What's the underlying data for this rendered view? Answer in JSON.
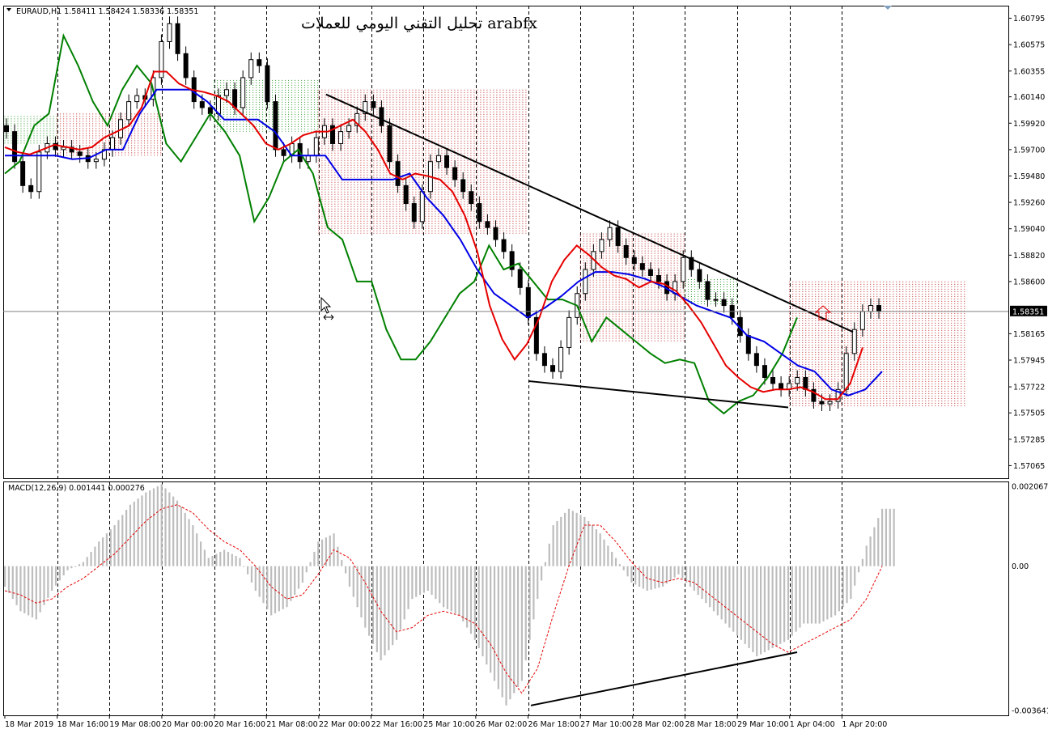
{
  "header": {
    "symbol_info": "EURAUD,H1  1.58411 1.58424 1.58336 1.58351",
    "title": "تحليل التقني اليومي للعملات arabfx"
  },
  "main_price_panel": {
    "current_price": "1.58351",
    "y_ticks": [
      "1.60795",
      "1.60575",
      "1.60355",
      "1.60140",
      "1.59920",
      "1.59700",
      "1.59480",
      "1.59260",
      "1.59040",
      "1.58820",
      "1.58600",
      "1.58165",
      "1.57945",
      "1.57722",
      "1.57505",
      "1.57285",
      "1.57065"
    ]
  },
  "macd_panel": {
    "label": "MACD(12,26,9) 0.001441 0.000276",
    "y_ticks": [
      "0.002067",
      "0.00",
      "-0.003641"
    ]
  },
  "x_axis": {
    "labels": [
      "18 Mar 2019",
      "18 Mar 16:00",
      "19 Mar 08:00",
      "20 Mar 00:00",
      "20 Mar 16:00",
      "21 Mar 08:00",
      "22 Mar 00:00",
      "22 Mar 16:00",
      "25 Mar 10:00",
      "26 Mar 02:00",
      "26 Mar 18:00",
      "27 Mar 10:00",
      "28 Mar 02:00",
      "28 Mar 18:00",
      "29 Mar 10:00",
      "1 Apr 04:00",
      "1 Apr 20:00"
    ]
  },
  "colors": {
    "tenkan": "#e60000",
    "kijun": "#0000e6",
    "chikou": "#008000",
    "cloud_bull": "#2e9b2e",
    "cloud_bear": "#c42a2a",
    "macd_hist": "#bdbdbd",
    "macd_signal": "#e60000",
    "grid": "#000000"
  },
  "chart_data": {
    "type": "candlestick",
    "symbol": "EURAUD",
    "timeframe": "H1",
    "ohlc_last": {
      "open": 1.58411,
      "high": 1.58424,
      "low": 1.58336,
      "close": 1.58351
    },
    "ylim": [
      1.5696,
      1.609
    ],
    "close_series": [
      1.5985,
      1.596,
      1.594,
      1.5935,
      1.5968,
      1.5975,
      1.597,
      1.5972,
      1.5968,
      1.5965,
      1.596,
      1.5962,
      1.597,
      1.598,
      1.5995,
      1.601,
      1.6015,
      1.6012,
      1.603,
      1.606,
      1.6075,
      1.605,
      1.603,
      1.601,
      1.6005,
      1.6,
      1.6015,
      1.602,
      1.6005,
      1.603,
      1.6045,
      1.604,
      1.601,
      1.597,
      1.5965,
      1.5975,
      1.596,
      1.5965,
      1.598,
      1.599,
      1.5975,
      1.5985,
      1.599,
      1.6,
      1.601,
      1.6005,
      1.599,
      1.596,
      1.594,
      1.5925,
      1.591,
      1.5935,
      1.596,
      1.5965,
      1.5955,
      1.5945,
      1.5935,
      1.5925,
      1.591,
      1.5905,
      1.5895,
      1.5885,
      1.587,
      1.5855,
      1.583,
      1.58,
      1.579,
      1.5785,
      1.5805,
      1.583,
      1.585,
      1.587,
      1.5885,
      1.5895,
      1.5905,
      1.589,
      1.588,
      1.5875,
      1.587,
      1.5865,
      1.586,
      1.585,
      1.586,
      1.588,
      1.587,
      1.586,
      1.5845,
      1.5845,
      1.584,
      1.583,
      1.5815,
      1.58,
      1.579,
      1.578,
      1.5775,
      1.577,
      1.5775,
      1.578,
      1.577,
      1.576,
      1.5758,
      1.576,
      1.577,
      1.58,
      1.582,
      1.5835,
      1.584,
      1.5835
    ],
    "tenkan": [
      1.5972,
      1.5968,
      1.5966,
      1.597,
      1.5974,
      1.5972,
      1.597,
      1.5972,
      1.598,
      1.5985,
      1.599,
      1.6005,
      1.6035,
      1.6035,
      1.6025,
      1.602,
      1.6018,
      1.6015,
      1.601,
      1.6,
      1.599,
      1.5975,
      1.597,
      1.5975,
      1.5982,
      1.5985,
      1.5985,
      1.599,
      1.5995,
      1.5985,
      1.597,
      1.595,
      1.5945,
      1.595,
      1.5948,
      1.5945,
      1.5935,
      1.5915,
      1.5885,
      1.584,
      1.5812,
      1.5795,
      1.5808,
      1.583,
      1.586,
      1.5878,
      1.589,
      1.5882,
      1.5872,
      1.5865,
      1.5862,
      1.5855,
      1.586,
      1.5858,
      1.5852,
      1.584,
      1.5826,
      1.5808,
      1.579,
      1.578,
      1.5772,
      1.5768,
      1.577,
      1.577,
      1.5772,
      1.5768,
      1.5762,
      1.5762,
      1.5775,
      1.5805
    ],
    "kijun": [
      1.5965,
      1.5965,
      1.5965,
      1.5965,
      1.5962,
      1.5963,
      1.597,
      1.597,
      1.6,
      1.602,
      1.602,
      1.602,
      1.601,
      1.5995,
      1.5995,
      1.5995,
      1.5985,
      1.5965,
      1.5965,
      1.5965,
      1.5945,
      1.5945,
      1.5945,
      1.5945,
      1.595,
      1.593,
      1.5915,
      1.5895,
      1.587,
      1.585,
      1.584,
      1.583,
      1.5838,
      1.5848,
      1.586,
      1.5868,
      1.5868,
      1.5866,
      1.5862,
      1.5856,
      1.5848,
      1.584,
      1.5835,
      1.583,
      1.5815,
      1.581,
      1.58,
      1.579,
      1.5785,
      1.577,
      1.5765,
      1.577,
      1.5785
    ],
    "chikou": [
      1.595,
      1.596,
      1.599,
      1.6,
      1.6065,
      1.604,
      1.601,
      1.599,
      1.602,
      1.604,
      1.6025,
      1.5975,
      1.596,
      1.598,
      1.6,
      1.5985,
      1.5965,
      1.591,
      1.593,
      1.596,
      1.597,
      1.595,
      1.5905,
      1.5895,
      1.586,
      1.586,
      1.582,
      1.5795,
      1.5795,
      1.581,
      1.583,
      1.585,
      1.586,
      1.589,
      1.587,
      1.5875,
      1.586,
      1.5845,
      1.5845,
      1.584,
      1.581,
      1.583,
      1.582,
      1.581,
      1.58,
      1.5792,
      1.5795,
      1.5792,
      1.576,
      1.575,
      1.576,
      1.5765,
      1.578,
      1.58,
      1.583
    ],
    "cloud_bull_segments": [
      {
        "from": "18 Mar 2019",
        "to": "18 Mar 16:00",
        "upper": 1.5998,
        "lower": 1.5975
      },
      {
        "from": "20 Mar 16:00",
        "to": "22 Mar 00:00",
        "upper": 1.6028,
        "lower": 1.5985
      },
      {
        "from": "28 Mar 18:00",
        "to": "29 Mar 10:00",
        "upper": 1.5862,
        "lower": 1.584
      }
    ],
    "cloud_bear_segments": [
      {
        "from": "18 Mar 16:00",
        "to": "20 Mar 00:00",
        "upper": 1.6,
        "lower": 1.5965
      },
      {
        "from": "22 Mar 00:00",
        "to": "26 Mar 18:00",
        "upper": 1.602,
        "lower": 1.59
      },
      {
        "from": "27 Mar 10:00",
        "to": "28 Mar 18:00",
        "upper": 1.59,
        "lower": 1.581
      },
      {
        "from": "1 Apr 04:00",
        "to": "future",
        "upper": 1.586,
        "lower": 1.5755
      }
    ],
    "trendlines": [
      {
        "name": "resistance",
        "from": {
          "x": "22 Mar 00:00",
          "y": 1.6016
        },
        "to": {
          "x": "1 Apr 04:00",
          "y": 1.5818
        }
      },
      {
        "name": "support",
        "from": {
          "x": "26 Mar 02:00",
          "y": 1.5777
        },
        "to": {
          "x": "1 Apr 04:00",
          "y": 1.5755
        }
      },
      {
        "name": "macd_divergence",
        "from": {
          "x": "26 Mar 18:00",
          "y": -0.0034
        },
        "to": {
          "x": "1 Apr 04:00",
          "y": -0.0021
        }
      }
    ],
    "macd": {
      "params": "12,26,9",
      "value": 0.001441,
      "signal_value": 0.000276,
      "ylim": [
        -0.003641,
        0.002067
      ],
      "hist": [
        -0.0005,
        -0.0011,
        -0.0013,
        -0.0006,
        -0.0001,
        0.0001,
        0.0006,
        0.001,
        0.0015,
        0.0018,
        0.002,
        0.0016,
        0.001,
        0.0002,
        0.0004,
        0.0002,
        -0.0006,
        -0.0012,
        -0.001,
        -0.0004,
        0.0006,
        0.0008,
        -0.0005,
        -0.0015,
        -0.0023,
        -0.0018,
        -0.0008,
        -0.0006,
        -0.001,
        -0.0012,
        -0.0018,
        -0.0026,
        -0.0034,
        -0.0028,
        -0.0008,
        0.001,
        0.0014,
        0.0012,
        0.0008,
        0.0002,
        -0.0004,
        -0.0006,
        -0.0005,
        -0.0002,
        -0.0006,
        -0.001,
        -0.0014,
        -0.0018,
        -0.0022,
        -0.002,
        -0.0018,
        -0.0014,
        -0.0014,
        -0.0012,
        -0.0008,
        0.0005,
        0.0014
      ],
      "signal": [
        -0.0006,
        -0.0007,
        -0.0009,
        -0.0008,
        -0.0005,
        -0.0003,
        0.0,
        0.0003,
        0.0007,
        0.0011,
        0.0014,
        0.0015,
        0.0013,
        0.0009,
        0.0006,
        0.0004,
        0.0,
        -0.0005,
        -0.0008,
        -0.0007,
        -0.0002,
        0.0004,
        0.0002,
        -0.0004,
        -0.0011,
        -0.0016,
        -0.0015,
        -0.0012,
        -0.0011,
        -0.0012,
        -0.0014,
        -0.0019,
        -0.0026,
        -0.0031,
        -0.0025,
        -0.0012,
        0.0,
        0.001,
        0.001,
        0.0006,
        0.0001,
        -0.0003,
        -0.0004,
        -0.0003,
        -0.0004,
        -0.0007,
        -0.001,
        -0.0013,
        -0.0016,
        -0.0019,
        -0.0021,
        -0.0019,
        -0.0017,
        -0.0015,
        -0.0013,
        -0.0008,
        0.0
      ]
    }
  }
}
